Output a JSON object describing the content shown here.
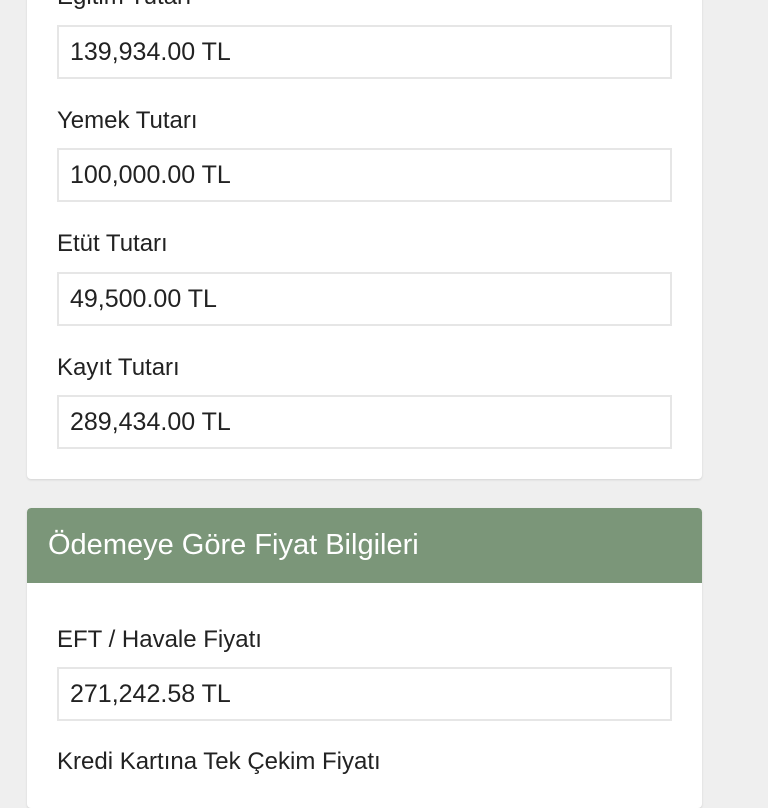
{
  "fees_card": {
    "fields": [
      {
        "label": "Eğitim Tutarı",
        "value": "139,934.00 TL"
      },
      {
        "label": "Yemek Tutarı",
        "value": "100,000.00 TL"
      },
      {
        "label": "Etüt Tutarı",
        "value": "49,500.00 TL"
      },
      {
        "label": "Kayıt Tutarı",
        "value": "289,434.00 TL"
      }
    ]
  },
  "payment_card": {
    "title": "Ödemeye Göre Fiyat Bilgileri",
    "fields": [
      {
        "label": "EFT / Havale Fiyatı",
        "value": "271,242.58 TL"
      },
      {
        "label": "Kredi Kartına Tek Çekim Fiyatı"
      }
    ]
  },
  "colors": {
    "header_bg": "#7b9679",
    "page_bg": "#efefef"
  }
}
